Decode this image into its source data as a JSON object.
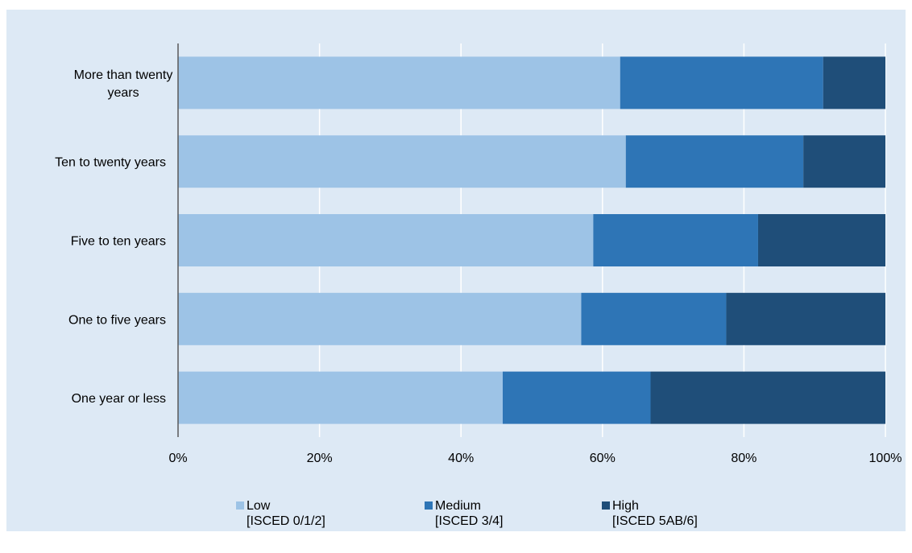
{
  "chart_data": {
    "type": "bar",
    "orientation": "horizontal",
    "stacked": true,
    "percent_scale": true,
    "categories": [
      "More than twenty years",
      "Ten to twenty years",
      "Five to ten years",
      "One to five years",
      "One year or less"
    ],
    "category_lines": [
      [
        "More than twenty",
        "years"
      ],
      [
        "Ten to twenty years"
      ],
      [
        "Five to ten years"
      ],
      [
        "One to five years"
      ],
      [
        "One year or less"
      ]
    ],
    "series": [
      {
        "name": "Low [ISCED 0/1/2]",
        "label_line1": "Low",
        "label_line2": "[ISCED 0/1/2]",
        "color": "#9dc3e6",
        "values": [
          62.5,
          63.3,
          58.7,
          57.0,
          45.9
        ]
      },
      {
        "name": "Medium [ISCED 3/4]",
        "label_line1": "Medium",
        "label_line2": "[ISCED 3/4]",
        "color": "#2e75b6",
        "values": [
          28.7,
          25.1,
          23.3,
          20.5,
          20.9
        ]
      },
      {
        "name": "High [ISCED 5AB/6]",
        "label_line1": "High",
        "label_line2": "[ISCED 5AB/6]",
        "color": "#1f4e79",
        "values": [
          8.8,
          11.6,
          18.0,
          22.5,
          33.2
        ]
      }
    ],
    "xlim": [
      0,
      100
    ],
    "xticks": [
      "0%",
      "20%",
      "40%",
      "60%",
      "80%",
      "100%"
    ],
    "grid": true,
    "legend_position": "bottom",
    "title": "",
    "xlabel": "",
    "ylabel": ""
  }
}
